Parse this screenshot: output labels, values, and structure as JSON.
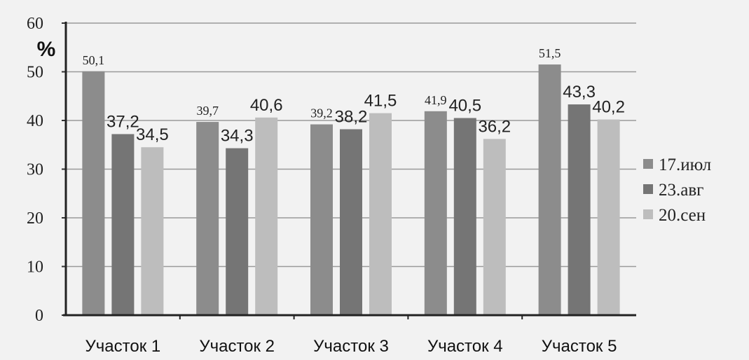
{
  "chart_data": {
    "type": "bar",
    "unit_label": "%",
    "categories": [
      "Участок 1",
      "Участок 2",
      "Участок 3",
      "Участок 4",
      "Участок 5"
    ],
    "series": [
      {
        "name": "17.июл",
        "color": "#8c8c8c",
        "values": [
          50.1,
          39.7,
          39.2,
          41.9,
          51.5
        ],
        "labels": [
          "50,1",
          "39,7",
          "39,2",
          "41,9",
          "51,5"
        ]
      },
      {
        "name": "23.авг",
        "color": "#757575",
        "values": [
          37.2,
          34.3,
          38.2,
          40.5,
          43.3
        ],
        "labels": [
          "37,2",
          "34,3",
          "38,2",
          "40,5",
          "43,3"
        ]
      },
      {
        "name": "20.сен",
        "color": "#bdbdbd",
        "values": [
          34.5,
          40.6,
          41.5,
          36.2,
          40.2
        ],
        "labels": [
          "34,5",
          "40,6",
          "41,5",
          "36,2",
          "40,2"
        ]
      }
    ],
    "ylim": [
      0,
      60
    ],
    "yticks": [
      0,
      10,
      20,
      30,
      40,
      50,
      60
    ],
    "grid": true,
    "legend": "right"
  }
}
